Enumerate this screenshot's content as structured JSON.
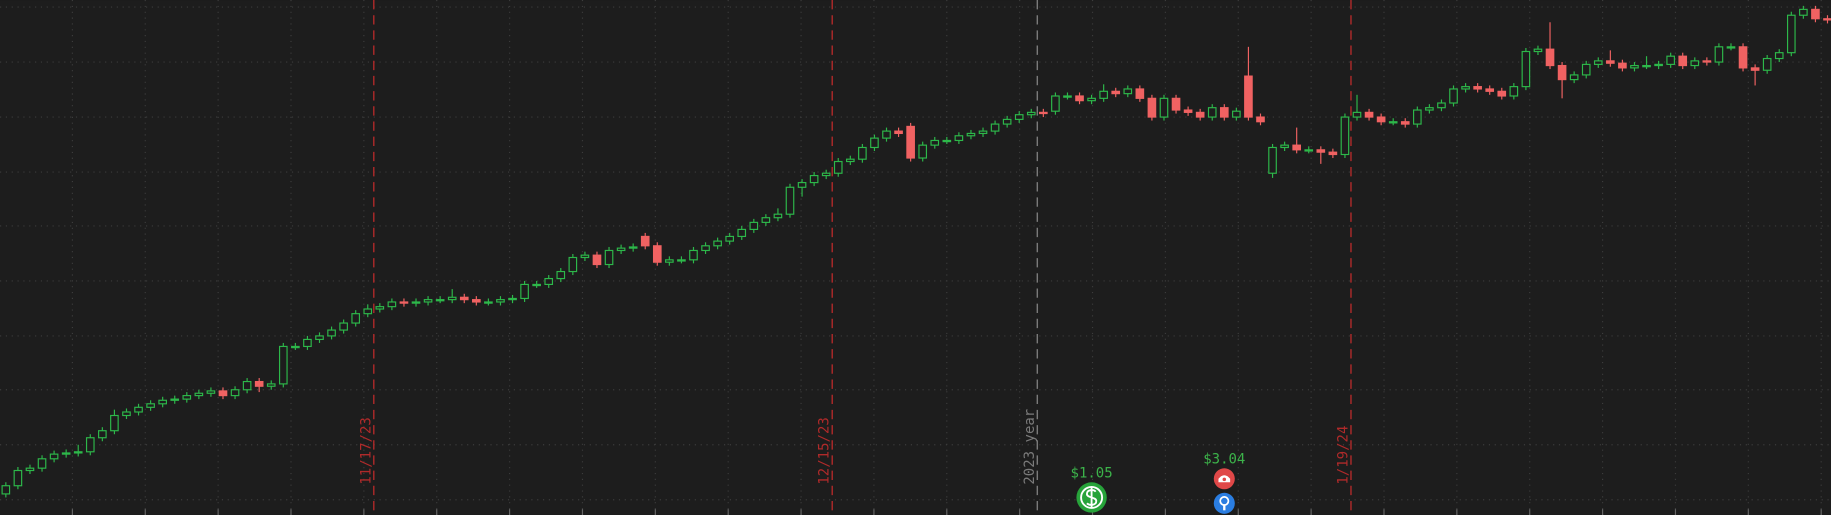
{
  "chart_data": {
    "type": "candlestick",
    "up_color": "#2db84a",
    "down_color": "#f06262",
    "ylim": [
      0,
      440
    ],
    "yticks": [
      13,
      60,
      107,
      153,
      200,
      247,
      293,
      340,
      387,
      434
    ],
    "grid": true,
    "open": [
      18,
      25,
      38,
      40,
      48,
      52,
      53,
      54,
      66,
      72,
      85,
      88,
      92,
      95,
      98,
      99,
      102,
      104,
      106,
      102,
      107,
      114,
      110,
      112,
      144,
      144,
      150,
      153,
      158,
      164,
      172,
      176,
      178,
      182,
      181,
      182,
      184,
      184,
      186,
      184,
      182,
      182,
      184,
      185,
      197,
      197,
      202,
      208,
      220,
      222,
      214,
      226,
      228,
      238,
      230,
      216,
      218,
      218,
      226,
      230,
      234,
      238,
      244,
      250,
      254,
      257,
      280,
      284,
      290,
      292,
      302,
      304,
      314,
      322,
      328,
      332,
      305,
      316,
      320,
      320,
      324,
      326,
      328,
      334,
      338,
      342,
      344,
      345,
      358,
      358,
      354,
      356,
      362,
      360,
      364,
      356,
      340,
      356,
      346,
      344,
      340,
      348,
      340,
      375,
      340,
      292,
      314,
      316,
      312,
      312,
      310,
      308,
      340,
      344,
      340,
      336,
      336,
      334,
      346,
      348,
      352,
      364,
      366,
      364,
      362,
      358,
      366,
      396,
      398,
      384,
      372,
      376,
      385,
      388,
      386,
      382,
      384,
      384,
      385,
      392,
      384,
      388,
      387,
      400,
      400,
      382,
      380,
      390,
      395,
      427,
      432,
      424
    ],
    "high": [
      28,
      41,
      43,
      51,
      55,
      56,
      60,
      69,
      75,
      90,
      91,
      95,
      98,
      101,
      102,
      105,
      107,
      109,
      109,
      110,
      117,
      117,
      115,
      147,
      147,
      153,
      156,
      161,
      167,
      175,
      180,
      181,
      185,
      185,
      185,
      187,
      187,
      193,
      189,
      187,
      185,
      187,
      188,
      200,
      200,
      205,
      211,
      223,
      225,
      225,
      229,
      231,
      232,
      241,
      233,
      221,
      221,
      229,
      233,
      237,
      241,
      247,
      253,
      257,
      262,
      283,
      287,
      293,
      295,
      305,
      307,
      317,
      325,
      331,
      331,
      335,
      319,
      323,
      323,
      327,
      329,
      331,
      337,
      341,
      345,
      347,
      347,
      361,
      361,
      361,
      359,
      368,
      365,
      367,
      367,
      359,
      359,
      359,
      349,
      347,
      351,
      351,
      348,
      400,
      343,
      317,
      319,
      331,
      315,
      315,
      313,
      343,
      359,
      347,
      343,
      339,
      339,
      349,
      351,
      355,
      367,
      369,
      369,
      367,
      365,
      369,
      399,
      401,
      421,
      387,
      379,
      388,
      391,
      397,
      389,
      387,
      392,
      388,
      395,
      395,
      391,
      391,
      403,
      403,
      403,
      385,
      393,
      398,
      430,
      435,
      435,
      427
    ],
    "low": [
      15,
      22,
      35,
      37,
      45,
      49,
      50,
      51,
      63,
      69,
      82,
      85,
      89,
      92,
      95,
      96,
      99,
      101,
      99,
      99,
      104,
      105,
      107,
      109,
      141,
      141,
      147,
      150,
      155,
      161,
      169,
      173,
      175,
      178,
      178,
      179,
      181,
      181,
      181,
      179,
      179,
      179,
      181,
      182,
      194,
      194,
      199,
      205,
      217,
      211,
      211,
      223,
      225,
      227,
      213,
      213,
      215,
      215,
      223,
      227,
      231,
      235,
      241,
      247,
      251,
      254,
      272,
      281,
      287,
      289,
      299,
      301,
      311,
      319,
      323,
      302,
      302,
      313,
      317,
      317,
      321,
      323,
      325,
      331,
      335,
      339,
      340,
      342,
      355,
      351,
      351,
      353,
      357,
      357,
      353,
      337,
      337,
      343,
      341,
      337,
      337,
      337,
      337,
      337,
      333,
      288,
      311,
      309,
      309,
      300,
      305,
      305,
      337,
      337,
      333,
      333,
      331,
      331,
      343,
      345,
      349,
      361,
      361,
      359,
      355,
      355,
      363,
      393,
      381,
      356,
      369,
      373,
      382,
      383,
      379,
      379,
      381,
      381,
      382,
      381,
      381,
      384,
      384,
      397,
      379,
      367,
      377,
      387,
      392,
      424,
      421,
      420
    ],
    "close": [
      25,
      38,
      40,
      48,
      52,
      53,
      54,
      66,
      72,
      85,
      88,
      92,
      95,
      98,
      99,
      102,
      104,
      106,
      102,
      107,
      114,
      110,
      112,
      144,
      144,
      150,
      153,
      158,
      164,
      172,
      176,
      178,
      182,
      181,
      182,
      184,
      184,
      186,
      184,
      182,
      182,
      184,
      185,
      197,
      197,
      202,
      208,
      220,
      222,
      214,
      226,
      228,
      229,
      230,
      216,
      218,
      218,
      226,
      230,
      234,
      238,
      244,
      250,
      254,
      257,
      280,
      284,
      290,
      292,
      302,
      304,
      314,
      322,
      328,
      326,
      305,
      316,
      320,
      320,
      324,
      326,
      328,
      334,
      338,
      342,
      344,
      343,
      358,
      358,
      354,
      356,
      362,
      360,
      364,
      356,
      340,
      356,
      346,
      344,
      340,
      348,
      340,
      345,
      340,
      336,
      314,
      316,
      312,
      312,
      310,
      308,
      340,
      344,
      340,
      336,
      336,
      334,
      346,
      348,
      352,
      364,
      366,
      364,
      362,
      358,
      366,
      396,
      398,
      384,
      372,
      376,
      385,
      388,
      386,
      382,
      384,
      384,
      385,
      392,
      384,
      388,
      387,
      400,
      400,
      382,
      380,
      390,
      395,
      427,
      432,
      424,
      423
    ],
    "markers": [
      {
        "label": "11/17/23",
        "before": 31,
        "color": "#b02a2a"
      },
      {
        "label": "12/15/23",
        "before": 69,
        "color": "#b02a2a"
      },
      {
        "label": "2023 year",
        "before": 86,
        "color": "#7a7a7a"
      },
      {
        "label": "1/19/24",
        "before": 112,
        "color": "#b02a2a"
      }
    ],
    "events": [
      {
        "label": "$1.05",
        "type": "dividend",
        "index": 90
      },
      {
        "label": "$3.04",
        "type": "earnings",
        "index": 101
      }
    ]
  }
}
